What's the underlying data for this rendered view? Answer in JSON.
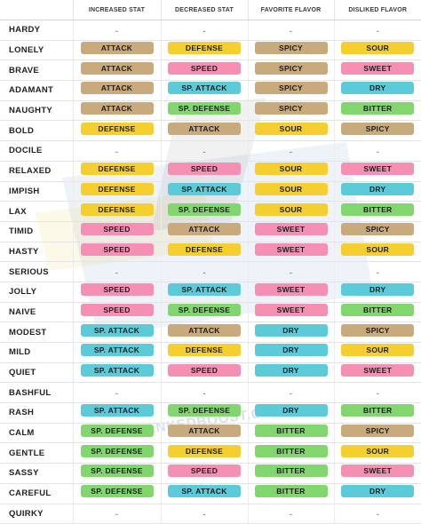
{
  "headers": [
    "",
    "INCREASED STAT",
    "DECREASED STAT",
    "FAVORITE FLAVOR",
    "DISLIKED FLAVOR"
  ],
  "watermark_text": "RANKEDBOOST.COM",
  "colors": {
    "ATTACK": "#c8aa7c",
    "DEFENSE": "#f5cf2f",
    "SPEED": "#f590b4",
    "SP. ATTACK": "#5ccbd9",
    "SP. DEFENSE": "#82d66e",
    "SPICY": "#c8aa7c",
    "SOUR": "#f5cf2f",
    "SWEET": "#f590b4",
    "DRY": "#5ccbd9",
    "BITTER": "#82d66e"
  },
  "natures": [
    {
      "name": "HARDY",
      "increased": "-",
      "decreased": "-",
      "favorite": "-",
      "disliked": "-"
    },
    {
      "name": "LONELY",
      "increased": "ATTACK",
      "decreased": "DEFENSE",
      "favorite": "SPICY",
      "disliked": "SOUR"
    },
    {
      "name": "BRAVE",
      "increased": "ATTACK",
      "decreased": "SPEED",
      "favorite": "SPICY",
      "disliked": "SWEET"
    },
    {
      "name": "ADAMANT",
      "increased": "ATTACK",
      "decreased": "SP. ATTACK",
      "favorite": "SPICY",
      "disliked": "DRY"
    },
    {
      "name": "NAUGHTY",
      "increased": "ATTACK",
      "decreased": "SP. DEFENSE",
      "favorite": "SPICY",
      "disliked": "BITTER"
    },
    {
      "name": "BOLD",
      "increased": "DEFENSE",
      "decreased": "ATTACK",
      "favorite": "SOUR",
      "disliked": "SPICY"
    },
    {
      "name": "DOCILE",
      "increased": "-",
      "decreased": "-",
      "favorite": "-",
      "disliked": "-"
    },
    {
      "name": "RELAXED",
      "increased": "DEFENSE",
      "decreased": "SPEED",
      "favorite": "SOUR",
      "disliked": "SWEET"
    },
    {
      "name": "IMPISH",
      "increased": "DEFENSE",
      "decreased": "SP. ATTACK",
      "favorite": "SOUR",
      "disliked": "DRY"
    },
    {
      "name": "LAX",
      "increased": "DEFENSE",
      "decreased": "SP. DEFENSE",
      "favorite": "SOUR",
      "disliked": "BITTER"
    },
    {
      "name": "TIMID",
      "increased": "SPEED",
      "decreased": "ATTACK",
      "favorite": "SWEET",
      "disliked": "SPICY"
    },
    {
      "name": "HASTY",
      "increased": "SPEED",
      "decreased": "DEFENSE",
      "favorite": "SWEET",
      "disliked": "SOUR"
    },
    {
      "name": "SERIOUS",
      "increased": "-",
      "decreased": "-",
      "favorite": "-",
      "disliked": "-"
    },
    {
      "name": "JOLLY",
      "increased": "SPEED",
      "decreased": "SP. ATTACK",
      "favorite": "SWEET",
      "disliked": "DRY"
    },
    {
      "name": "NAIVE",
      "increased": "SPEED",
      "decreased": "SP. DEFENSE",
      "favorite": "SWEET",
      "disliked": "BITTER"
    },
    {
      "name": "MODEST",
      "increased": "SP. ATTACK",
      "decreased": "ATTACK",
      "favorite": "DRY",
      "disliked": "SPICY"
    },
    {
      "name": "MILD",
      "increased": "SP. ATTACK",
      "decreased": "DEFENSE",
      "favorite": "DRY",
      "disliked": "SOUR"
    },
    {
      "name": "QUIET",
      "increased": "SP. ATTACK",
      "decreased": "SPEED",
      "favorite": "DRY",
      "disliked": "SWEET"
    },
    {
      "name": "BASHFUL",
      "increased": "-",
      "decreased": "-",
      "favorite": "-",
      "disliked": "-"
    },
    {
      "name": "RASH",
      "increased": "SP. ATTACK",
      "decreased": "SP. DEFENSE",
      "favorite": "DRY",
      "disliked": "BITTER"
    },
    {
      "name": "CALM",
      "increased": "SP. DEFENSE",
      "decreased": "ATTACK",
      "favorite": "BITTER",
      "disliked": "SPICY"
    },
    {
      "name": "GENTLE",
      "increased": "SP. DEFENSE",
      "decreased": "DEFENSE",
      "favorite": "BITTER",
      "disliked": "SOUR"
    },
    {
      "name": "SASSY",
      "increased": "SP. DEFENSE",
      "decreased": "SPEED",
      "favorite": "BITTER",
      "disliked": "SWEET"
    },
    {
      "name": "CAREFUL",
      "increased": "SP. DEFENSE",
      "decreased": "SP. ATTACK",
      "favorite": "BITTER",
      "disliked": "DRY"
    },
    {
      "name": "QUIRKY",
      "increased": "-",
      "decreased": "-",
      "favorite": "-",
      "disliked": "-"
    }
  ]
}
